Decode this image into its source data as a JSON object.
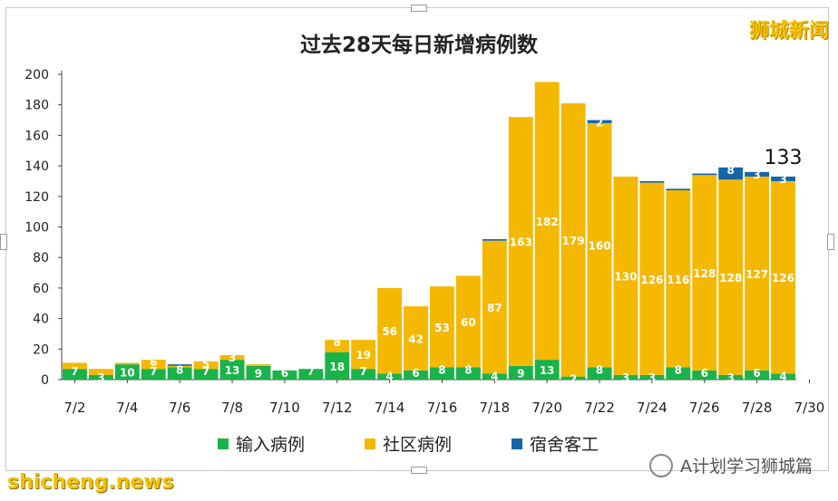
{
  "brand_label": "狮城新闻",
  "watermark_left": "shicheng.news",
  "watermark_right": "A计划学习狮城篇",
  "chart_data": {
    "type": "bar",
    "stacked": true,
    "title": "过去28天每日新增病例数",
    "xlabel": "",
    "ylabel": "",
    "ylim": [
      0,
      200
    ],
    "yticks": [
      0,
      20,
      40,
      60,
      80,
      100,
      120,
      140,
      160,
      180,
      200
    ],
    "xtick_labels": [
      "7/2",
      "7/4",
      "7/6",
      "7/8",
      "7/10",
      "7/12",
      "7/14",
      "7/16",
      "7/18",
      "7/20",
      "7/22",
      "7/24",
      "7/26",
      "7/28",
      "7/30"
    ],
    "categories": [
      "7/2",
      "7/3",
      "7/4",
      "7/5",
      "7/6",
      "7/7",
      "7/8",
      "7/9",
      "7/10",
      "7/11",
      "7/12",
      "7/13",
      "7/14",
      "7/15",
      "7/16",
      "7/17",
      "7/18",
      "7/19",
      "7/20",
      "7/21",
      "7/22",
      "7/23",
      "7/24",
      "7/25",
      "7/26",
      "7/27",
      "7/28",
      "7/29"
    ],
    "series": [
      {
        "name": "输入病例",
        "color": "#1ab34a",
        "values": [
          7,
          3,
          10,
          7,
          8,
          7,
          13,
          9,
          6,
          7,
          18,
          7,
          4,
          6,
          8,
          8,
          4,
          9,
          13,
          2,
          8,
          3,
          3,
          8,
          6,
          3,
          6,
          4
        ]
      },
      {
        "name": "社区病例",
        "color": "#f5b800",
        "values": [
          4,
          4,
          1,
          6,
          1,
          5,
          3,
          1,
          0,
          0,
          8,
          19,
          56,
          42,
          53,
          60,
          87,
          163,
          182,
          179,
          160,
          130,
          126,
          116,
          128,
          128,
          127,
          126
        ]
      },
      {
        "name": "宿舍客工",
        "color": "#1565a8",
        "values": [
          0,
          0,
          0,
          0,
          1,
          0,
          0,
          0,
          0,
          0,
          0,
          0,
          0,
          0,
          0,
          0,
          1,
          0,
          0,
          0,
          2,
          0,
          1,
          1,
          1,
          8,
          3,
          3
        ]
      }
    ],
    "segment_labels": [
      [
        {
          "i": 0,
          "text": "7"
        },
        {
          "i": 1,
          "text": "3"
        },
        {
          "i": 2,
          "text": "10"
        },
        {
          "i": 3,
          "text": "7"
        },
        {
          "i": 4,
          "text": "8"
        },
        {
          "i": 5,
          "text": "7"
        },
        {
          "i": 6,
          "text": "13"
        },
        {
          "i": 7,
          "text": "9"
        },
        {
          "i": 8,
          "text": "6"
        },
        {
          "i": 9,
          "text": "7"
        },
        {
          "i": 10,
          "text": "18"
        },
        {
          "i": 11,
          "text": "7"
        },
        {
          "i": 12,
          "text": "4"
        },
        {
          "i": 13,
          "text": "6"
        },
        {
          "i": 14,
          "text": "8"
        },
        {
          "i": 15,
          "text": "8"
        },
        {
          "i": 16,
          "text": "4"
        },
        {
          "i": 17,
          "text": "9"
        },
        {
          "i": 18,
          "text": "13"
        },
        {
          "i": 19,
          "text": "2"
        },
        {
          "i": 20,
          "text": "8"
        },
        {
          "i": 21,
          "text": "3"
        },
        {
          "i": 22,
          "text": "3"
        },
        {
          "i": 23,
          "text": "8"
        },
        {
          "i": 24,
          "text": "6"
        },
        {
          "i": 25,
          "text": "3"
        },
        {
          "i": 26,
          "text": "6"
        },
        {
          "i": 27,
          "text": "4"
        }
      ],
      [
        {
          "i": 3,
          "text": "6"
        },
        {
          "i": 5,
          "text": "5"
        },
        {
          "i": 6,
          "text": "3"
        },
        {
          "i": 10,
          "text": "8"
        },
        {
          "i": 11,
          "text": "19"
        },
        {
          "i": 12,
          "text": "56"
        },
        {
          "i": 13,
          "text": "42"
        },
        {
          "i": 14,
          "text": "53"
        },
        {
          "i": 15,
          "text": "60"
        },
        {
          "i": 16,
          "text": "87"
        },
        {
          "i": 17,
          "text": "163"
        },
        {
          "i": 18,
          "text": "182"
        },
        {
          "i": 19,
          "text": "179"
        },
        {
          "i": 20,
          "text": "160"
        },
        {
          "i": 21,
          "text": "130"
        },
        {
          "i": 22,
          "text": "126"
        },
        {
          "i": 23,
          "text": "116"
        },
        {
          "i": 24,
          "text": "128"
        },
        {
          "i": 25,
          "text": "128"
        },
        {
          "i": 26,
          "text": "127"
        },
        {
          "i": 27,
          "text": "126"
        }
      ],
      [
        {
          "i": 20,
          "text": "2"
        },
        {
          "i": 25,
          "text": "8"
        },
        {
          "i": 26,
          "text": "3"
        },
        {
          "i": 27,
          "text": "3"
        }
      ]
    ],
    "annotation": {
      "index": 27,
      "text": "133"
    },
    "legend_position": "bottom",
    "grid": false
  }
}
